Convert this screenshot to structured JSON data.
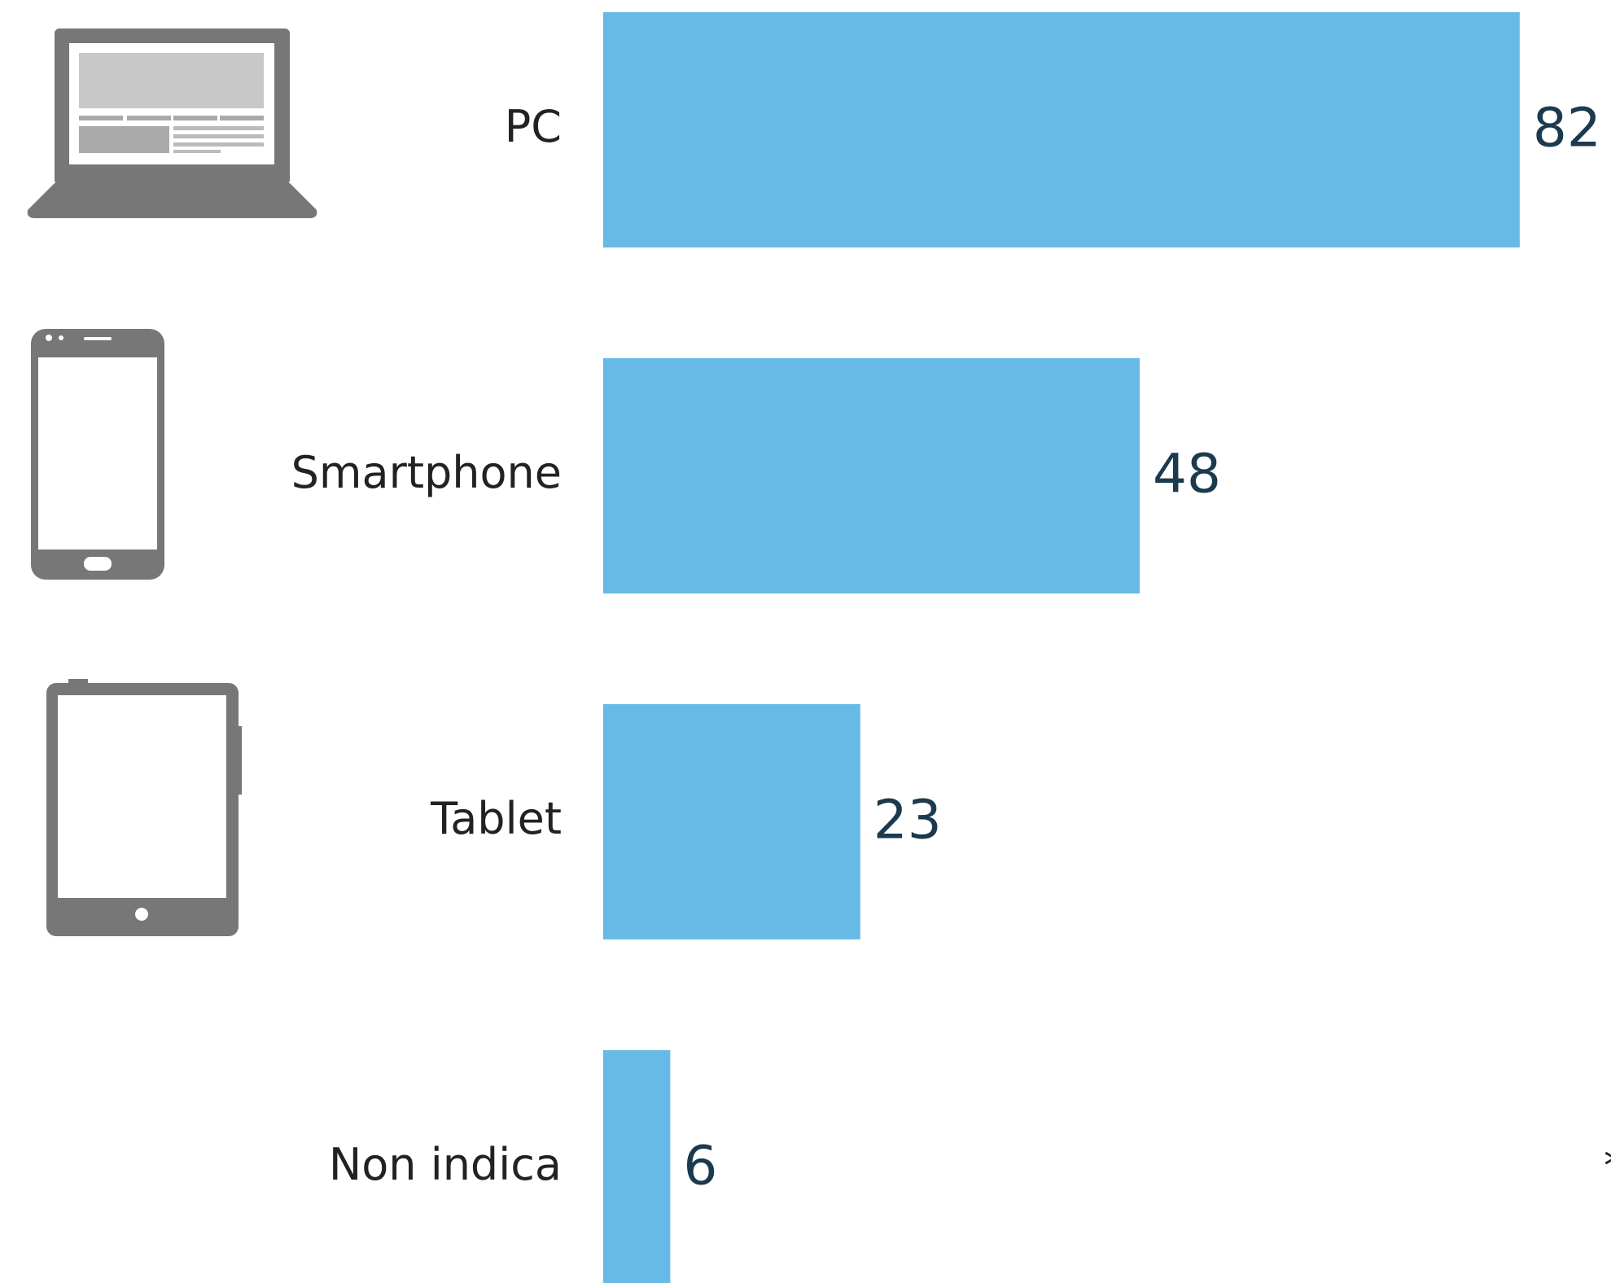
{
  "chart_data": {
    "type": "bar",
    "orientation": "horizontal",
    "categories": [
      "PC",
      "Smartphone",
      "Tablet",
      "Non indica"
    ],
    "values": [
      82,
      48,
      23,
      6
    ],
    "color": "#68bae6",
    "value_color": "#1b3a4e",
    "annotation": "*"
  }
}
